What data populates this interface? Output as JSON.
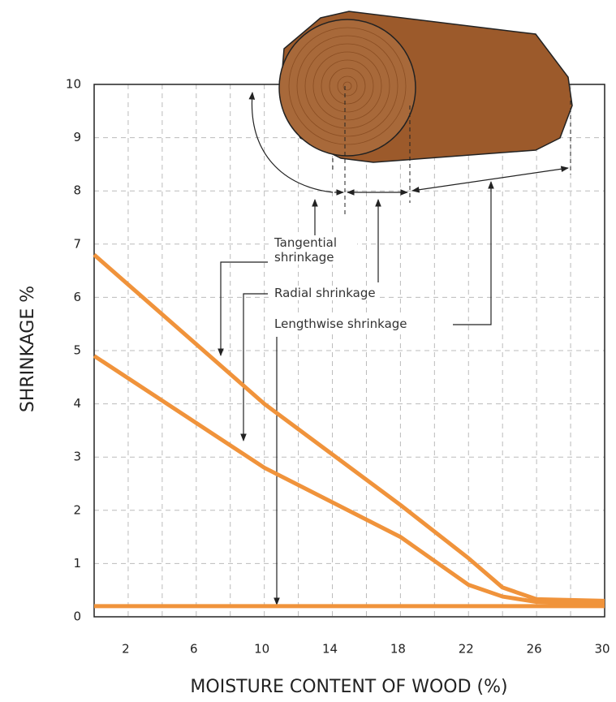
{
  "chart_data": {
    "type": "line",
    "xlabel": "MOISTURE CONTENT OF WOOD (%)",
    "ylabel": "SHRINKAGE %",
    "xlim": [
      0,
      30
    ],
    "xticks": [
      2,
      6,
      10,
      14,
      18,
      22,
      26,
      30
    ],
    "xminorticks": [
      4,
      8,
      12,
      16,
      20,
      24,
      28
    ],
    "ylim": [
      0,
      10
    ],
    "yticks": [
      0,
      1,
      2,
      3,
      4,
      5,
      6,
      7,
      8,
      9,
      10
    ],
    "grid": true,
    "series": [
      {
        "name": "Tangential shrinkage",
        "color": "#f0933b",
        "x": [
          0,
          10,
          18,
          22,
          24,
          26,
          30
        ],
        "values": [
          6.8,
          4.0,
          2.1,
          1.1,
          0.55,
          0.33,
          0.3
        ]
      },
      {
        "name": "Radial shrinkage",
        "color": "#f0933b",
        "x": [
          0,
          10,
          18,
          22,
          24,
          26,
          30
        ],
        "values": [
          4.9,
          2.8,
          1.5,
          0.6,
          0.38,
          0.28,
          0.25
        ]
      },
      {
        "name": "Lengthwise shrinkage",
        "color": "#f0933b",
        "x": [
          0,
          30
        ],
        "values": [
          0.2,
          0.2
        ]
      }
    ]
  }
}
